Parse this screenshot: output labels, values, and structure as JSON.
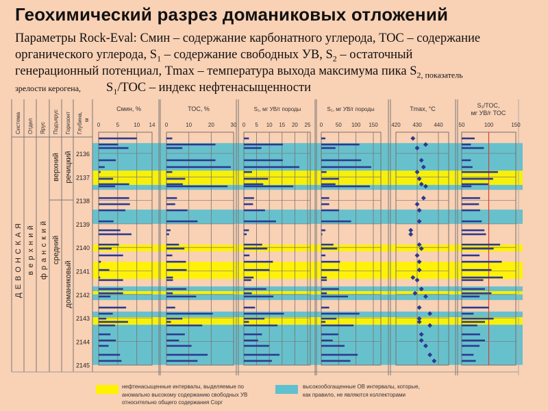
{
  "title": "Геохимический разрез доманиковых отложений",
  "description": {
    "line1": "Параметры Rock-Eval: Смин – содержание карбонатного углерода, TOC – содержание",
    "line2_a": "органического углерода, S",
    "line2_sub1": "1",
    "line2_b": " – содержание свободных УВ, S",
    "line2_sub2": "2",
    "line2_c": " – остаточный",
    "line3_a": "генерационный потенциал, Tmax – температура выхода максимума пика S",
    "line3_sub": "2, показатель",
    "line4_small": "зрелости керогена,",
    "line4_a": "S",
    "line4_sub": "1",
    "line4_b": "/TOC – индекс нефтенасыщенности"
  },
  "table": {
    "headers": [
      "Система",
      "Отдел",
      "Ярус",
      "Подъярус",
      "Горизонт",
      "Глубина,",
      "м"
    ],
    "strat": {
      "system": "Д Е В О Н С К А Я",
      "series": "в е р х н и й",
      "stage": "ф р а н с к и й",
      "substage_upper": "верхний",
      "substage_middle": "средний",
      "horizon_upper": "речицкий",
      "horizon_lower": "доманиковый"
    },
    "depth_labels": [
      "2136",
      "2137",
      "2138",
      "2139",
      "2140",
      "2141",
      "2142",
      "2143",
      "2144",
      "2145"
    ]
  },
  "legend": {
    "yellow_color": "#fff200",
    "cyan_color": "#5fc0cf",
    "yellow_text": "нефтенасыщенные интервалы, выделяемые по\nаномально высокому содержанию свободных УВ\nотносительно общего содержания Сорг",
    "cyan_text": "высокообогащенные ОВ интервалы, которые,\nкак правило, не являются коллекторами"
  },
  "colors": {
    "background": "#f9d1b5",
    "bar": "#2b3990",
    "ref_line": "#d0403a",
    "grid": "#8a7f78"
  },
  "chart_data": {
    "type": "bar",
    "depth_unit": "м",
    "depth_range": [
      2135.3,
      2145.0
    ],
    "tracks": [
      {
        "key": "cmin",
        "title": "Смин, %",
        "ticks": [
          "0",
          "5",
          "10",
          "14"
        ],
        "tick_values": [
          0,
          5,
          10,
          14
        ],
        "range": [
          0,
          14
        ]
      },
      {
        "key": "toc",
        "title": "TOC, %",
        "ticks": [
          "0",
          "10",
          "20",
          "30"
        ],
        "tick_values": [
          0,
          10,
          20,
          30
        ],
        "range": [
          0,
          30
        ]
      },
      {
        "key": "s1",
        "title": "S₁, мг УВ/г породы",
        "ticks": [
          "0",
          "5",
          "10",
          "15",
          "20",
          "25"
        ],
        "tick_values": [
          0,
          5,
          10,
          15,
          20,
          25
        ],
        "range": [
          0,
          25
        ]
      },
      {
        "key": "s2",
        "title": "S₂, мг УВ/г породы",
        "ticks": [
          "0",
          "50",
          "100",
          "150"
        ],
        "tick_values": [
          0,
          50,
          100,
          150
        ],
        "range": [
          0,
          167
        ]
      },
      {
        "key": "tmax",
        "title": "Tmax, °C",
        "ticks": [
          "420",
          "430",
          "440"
        ],
        "tick_values": [
          420,
          430,
          440
        ],
        "range": [
          420,
          445
        ],
        "marker": "diamond"
      },
      {
        "key": "s1toc",
        "title": "S₁/TOC,",
        "title2": "мг УВ/г TOC",
        "ticks": [
          "50",
          "100",
          "150"
        ],
        "tick_values": [
          50,
          100,
          150
        ],
        "range": [
          50,
          150
        ],
        "reference": 100
      }
    ],
    "samples": [
      {
        "depth": 2135.36,
        "cmin": 10.0,
        "toc": 2.6,
        "s1": 2.0,
        "s2": 12,
        "tmax": 428,
        "s1toc": 74
      },
      {
        "depth": 2135.62,
        "cmin": 5.1,
        "toc": 21.9,
        "s1": 15.3,
        "s2": 110,
        "tmax": 434,
        "s1toc": 67
      },
      {
        "depth": 2135.77,
        "cmin": 7.8,
        "toc": 7.1,
        "s1": 6.9,
        "s2": 41,
        "tmax": 430,
        "s1toc": 91
      },
      {
        "depth": 2136.29,
        "cmin": 4.5,
        "toc": 21.9,
        "s1": 15.3,
        "s2": 115,
        "tmax": 432,
        "s1toc": 67
      },
      {
        "depth": 2136.58,
        "cmin": 1.6,
        "toc": 28.8,
        "s1": 21.8,
        "s2": 144,
        "tmax": 433,
        "s1toc": 70
      },
      {
        "depth": 2136.79,
        "cmin": 0.5,
        "toc": 2.6,
        "s1": 3.2,
        "s2": 15,
        "tmax": 430,
        "s1toc": 117
      },
      {
        "depth": 2137.08,
        "cmin": 3.8,
        "toc": 8.4,
        "s1": 9.5,
        "s2": 51,
        "tmax": 431,
        "s1toc": 108
      },
      {
        "depth": 2137.31,
        "cmin": 8.0,
        "toc": 7.3,
        "s1": 7.6,
        "s2": 41,
        "tmax": 432,
        "s1toc": 99
      },
      {
        "depth": 2137.4,
        "cmin": 4.3,
        "toc": 27.3,
        "s1": 19.4,
        "s2": 140,
        "tmax": 434,
        "s1toc": 68
      },
      {
        "depth": 2137.9,
        "cmin": 8.0,
        "toc": 4.7,
        "s1": 4.0,
        "s2": 23,
        "tmax": 433,
        "s1toc": 84
      },
      {
        "depth": 2138.16,
        "cmin": 8.2,
        "toc": 3.9,
        "s1": 3.6,
        "s2": 23,
        "tmax": 430,
        "s1toc": 82
      },
      {
        "depth": 2138.42,
        "cmin": 7.0,
        "toc": 9.4,
        "s1": 8.3,
        "s2": 51,
        "tmax": 431,
        "s1toc": 84
      },
      {
        "depth": 2138.89,
        "cmin": 3.9,
        "toc": 13.9,
        "s1": 12.6,
        "s2": 86,
        "tmax": 431,
        "s1toc": 87
      },
      {
        "depth": 2139.27,
        "cmin": 5.7,
        "toc": 1.8,
        "s1": 2.0,
        "s2": 12,
        "tmax": 427,
        "s1toc": 92
      },
      {
        "depth": 2139.44,
        "cmin": 8.6,
        "toc": 1.2,
        "s1": 1.1,
        "s2": 3,
        "tmax": 427,
        "s1toc": 95
      },
      {
        "depth": 2139.88,
        "cmin": 5.3,
        "toc": 5.6,
        "s1": 7.2,
        "s2": 35,
        "tmax": 431,
        "s1toc": 121
      },
      {
        "depth": 2140.05,
        "cmin": 3.4,
        "toc": 8.0,
        "s1": 9.2,
        "s2": 46,
        "tmax": 432,
        "s1toc": 109
      },
      {
        "depth": 2140.34,
        "cmin": 6.4,
        "toc": 2.6,
        "s1": 2.2,
        "s2": 12,
        "tmax": 430,
        "s1toc": 83
      },
      {
        "depth": 2140.61,
        "cmin": 0.6,
        "toc": 8.7,
        "s1": 11.4,
        "s2": 54,
        "tmax": 431,
        "s1toc": 124
      },
      {
        "depth": 2140.96,
        "cmin": 2.8,
        "toc": 9.0,
        "s1": 10.1,
        "s2": 52,
        "tmax": 431,
        "s1toc": 105
      },
      {
        "depth": 2141.28,
        "cmin": 0.4,
        "toc": 2.9,
        "s1": 3.8,
        "s2": 16,
        "tmax": 428,
        "s1toc": 126
      },
      {
        "depth": 2141.39,
        "cmin": 6.4,
        "toc": 2.9,
        "s1": 2.9,
        "s2": 16,
        "tmax": 430,
        "s1toc": 90
      },
      {
        "depth": 2141.77,
        "cmin": 6.4,
        "toc": 8.9,
        "s1": 8.8,
        "s2": 51,
        "tmax": 432,
        "s1toc": 93
      },
      {
        "depth": 2141.95,
        "cmin": 6.4,
        "toc": 2.8,
        "s1": 3.1,
        "s2": 16,
        "tmax": 429,
        "s1toc": 105
      },
      {
        "depth": 2142.09,
        "cmin": 3.1,
        "toc": 13.3,
        "s1": 11.6,
        "s2": 77,
        "tmax": 434,
        "s1toc": 83
      },
      {
        "depth": 2142.56,
        "cmin": 7.2,
        "toc": 3.9,
        "s1": 4.4,
        "s2": 23,
        "tmax": 431,
        "s1toc": 100
      },
      {
        "depth": 2142.82,
        "cmin": 3.7,
        "toc": 20.7,
        "s1": 15.7,
        "s2": 110,
        "tmax": 436,
        "s1toc": 72
      },
      {
        "depth": 2143.03,
        "cmin": 2.0,
        "toc": 7.1,
        "s1": 8.1,
        "s2": 44,
        "tmax": 431,
        "s1toc": 109
      },
      {
        "depth": 2143.17,
        "cmin": 7.7,
        "toc": 2.0,
        "s1": 2.0,
        "s2": 12,
        "tmax": 431,
        "s1toc": 93
      },
      {
        "depth": 2143.32,
        "cmin": 4.3,
        "toc": 16.0,
        "s1": 13.2,
        "s2": 93,
        "tmax": 436,
        "s1toc": 79
      },
      {
        "depth": 2143.7,
        "cmin": 3.1,
        "toc": 8.2,
        "s1": 7.1,
        "s2": 49,
        "tmax": 432,
        "s1toc": 84
      },
      {
        "depth": 2143.96,
        "cmin": 4.5,
        "toc": 5.6,
        "s1": 5.6,
        "s2": 33,
        "tmax": 432,
        "s1toc": 93
      },
      {
        "depth": 2144.19,
        "cmin": 2.6,
        "toc": 11.2,
        "s1": 9.9,
        "s2": 67,
        "tmax": 434,
        "s1toc": 83
      },
      {
        "depth": 2144.57,
        "cmin": 5.6,
        "toc": 18.4,
        "s1": 14.0,
        "s2": 105,
        "tmax": 436,
        "s1toc": 72
      },
      {
        "depth": 2144.83,
        "cmin": 6.0,
        "toc": 13.9,
        "s1": 11.0,
        "s2": 84,
        "tmax": 438,
        "s1toc": 76
      }
    ],
    "intervals": [
      {
        "type": "cyan",
        "top": 2135.56,
        "bottom": 2137.55
      },
      {
        "type": "yellow",
        "top": 2136.73,
        "bottom": 2137.34
      },
      {
        "type": "cyan",
        "top": 2138.39,
        "bottom": 2139.0
      },
      {
        "type": "yellow",
        "top": 2139.88,
        "bottom": 2140.17
      },
      {
        "type": "yellow",
        "top": 2140.61,
        "bottom": 2141.34
      },
      {
        "type": "cyan",
        "top": 2141.66,
        "bottom": 2142.24
      },
      {
        "type": "yellow",
        "top": 2141.86,
        "bottom": 2142.0
      },
      {
        "type": "cyan",
        "top": 2142.73,
        "bottom": 2145.0
      },
      {
        "type": "yellow",
        "top": 2142.97,
        "bottom": 2143.29
      }
    ]
  }
}
